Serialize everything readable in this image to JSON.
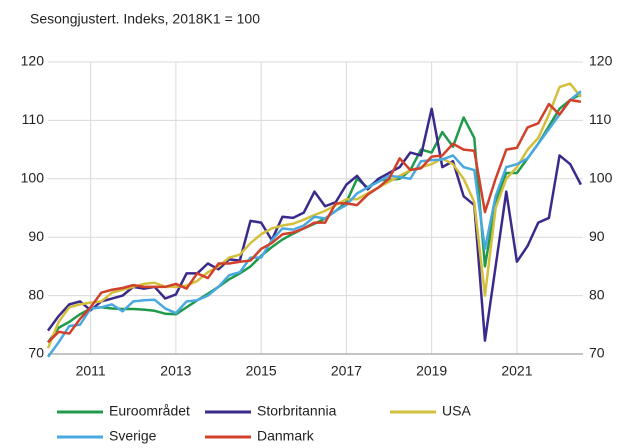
{
  "chart_data": {
    "type": "line",
    "subtitle": "Sesongjustert. Indeks, 2018K1 = 100",
    "x": [
      2010,
      2010.25,
      2010.5,
      2010.75,
      2011,
      2011.25,
      2011.5,
      2011.75,
      2012,
      2012.25,
      2012.5,
      2012.75,
      2013,
      2013.25,
      2013.5,
      2013.75,
      2014,
      2014.25,
      2014.5,
      2014.75,
      2015,
      2015.25,
      2015.5,
      2015.75,
      2016,
      2016.25,
      2016.5,
      2016.75,
      2017,
      2017.25,
      2017.5,
      2017.75,
      2018,
      2018.25,
      2018.5,
      2018.75,
      2019,
      2019.25,
      2019.5,
      2019.75,
      2020,
      2020.25,
      2020.5,
      2020.75,
      2021,
      2021.25,
      2021.5,
      2021.75,
      2022,
      2022.25,
      2022.5
    ],
    "series": [
      {
        "name": "Euroområdet",
        "color": "#1f9a4a",
        "values": [
          72,
          74.5,
          75.5,
          76.8,
          77.8,
          78,
          77.8,
          77.7,
          77.7,
          77.6,
          77.4,
          76.9,
          76.8,
          78,
          79.2,
          80.3,
          81.5,
          82.8,
          83.8,
          85,
          86.8,
          88.3,
          89.6,
          90.6,
          91.5,
          92.3,
          93.2,
          94.5,
          96,
          100,
          98.5,
          99.8,
          99.8,
          100,
          101.5,
          105,
          104.5,
          108,
          105.5,
          110.5,
          107,
          85,
          96,
          101,
          101,
          103.5,
          106,
          109,
          112,
          113.5,
          114.5
        ]
      },
      {
        "name": "Storbritannia",
        "color": "#3b2a8c",
        "values": [
          74,
          76.5,
          78.5,
          79,
          77.5,
          79,
          79.5,
          80,
          81.5,
          81.2,
          81.5,
          79.5,
          80.2,
          83.8,
          83.8,
          85.5,
          84.5,
          86.2,
          86,
          92.8,
          92.5,
          89.5,
          93.5,
          93.3,
          94.2,
          97.8,
          95.3,
          96,
          99,
          100.5,
          98.2,
          100,
          101,
          102,
          104.5,
          104,
          112,
          102,
          103,
          97,
          95.5,
          72.3,
          85,
          97.8,
          85.8,
          88.5,
          92.5,
          93.3,
          104,
          102.5,
          99
        ]
      },
      {
        "name": "USA",
        "color": "#d3bf3c",
        "values": [
          71,
          75.5,
          78,
          78.5,
          78.8,
          79,
          80.5,
          81,
          81.5,
          82,
          82.2,
          81.5,
          81.5,
          81.7,
          82.5,
          84,
          85,
          86.5,
          87,
          89,
          90.5,
          91.5,
          92,
          92.3,
          93,
          93.8,
          94.5,
          95.5,
          96.5,
          96.5,
          97.5,
          98.5,
          99.5,
          100.5,
          101.5,
          102,
          102.5,
          103.5,
          102.5,
          100,
          96,
          80,
          95,
          100,
          102,
          105,
          107,
          111,
          115.7,
          116.3,
          114
        ]
      },
      {
        "name": "Sverige",
        "color": "#4aa8e0",
        "values": [
          69.5,
          72,
          74.8,
          75,
          77.8,
          78,
          78.5,
          77.3,
          79,
          79.2,
          79.3,
          77.8,
          77,
          79,
          79.2,
          80,
          81.5,
          83.5,
          84,
          86.5,
          86.5,
          89.5,
          91.5,
          91.3,
          92,
          93.5,
          93.2,
          94.5,
          95.5,
          97.5,
          98.5,
          99.5,
          100.5,
          100.3,
          100,
          103,
          103.2,
          103.3,
          104,
          102,
          101.5,
          88,
          97,
          102,
          102.5,
          103.5,
          106,
          108.5,
          111,
          113.5,
          115
        ]
      },
      {
        "name": "Danmark",
        "color": "#d1402a",
        "values": [
          72,
          73.8,
          73.5,
          76,
          78,
          80.5,
          81,
          81.3,
          81.8,
          81.5,
          81.5,
          81.5,
          82,
          81.2,
          83.8,
          83,
          85.5,
          85.5,
          85.8,
          86,
          88,
          89,
          90.5,
          90.8,
          91.5,
          92.5,
          92.5,
          95.8,
          95.8,
          95.5,
          97.3,
          98.5,
          100,
          103.5,
          101.5,
          101.8,
          103.8,
          104,
          106,
          105,
          104.8,
          94.3,
          100,
          105,
          105.3,
          108.8,
          109.5,
          112.8,
          111,
          113.5,
          113.2
        ]
      }
    ],
    "xlim": [
      2010,
      2022.55
    ],
    "xticks": [
      2011,
      2013,
      2015,
      2017,
      2019,
      2021
    ],
    "ylim": [
      70,
      120
    ],
    "yticks": [
      70,
      80,
      90,
      100,
      110,
      120
    ],
    "y2lim": [
      70,
      120
    ],
    "y2ticks": [
      70,
      80,
      90,
      100,
      110,
      120
    ],
    "grid": true
  }
}
